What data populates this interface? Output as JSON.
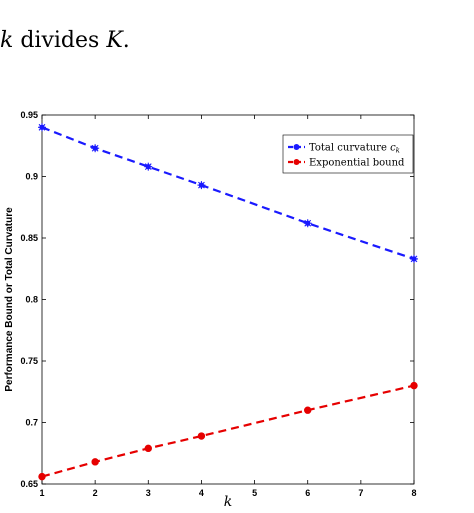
{
  "caption": {
    "var_k": "k",
    "middle": " divides ",
    "var_K": "K",
    "end": "."
  },
  "colors": {
    "series_0": "#1a1aff",
    "series_1": "#e60000"
  },
  "chart_data": {
    "type": "line",
    "xlabel": "k",
    "ylabel": "Performance Bound or Total Curvature",
    "xlim": [
      1,
      8
    ],
    "ylim": [
      0.65,
      0.95
    ],
    "xticks": [
      "1",
      "2",
      "3",
      "4",
      "5",
      "6",
      "7",
      "8"
    ],
    "yticks": [
      "0.65",
      "0.7",
      "0.75",
      "0.8",
      "0.85",
      "0.9",
      "0.95"
    ],
    "grid": false,
    "legend_position": "top-right",
    "series": [
      {
        "name": "Total curvature",
        "name_math": "c",
        "name_sub": "k",
        "marker": "asterisk",
        "style": "dashed",
        "x": [
          1,
          2,
          3,
          4,
          6,
          8
        ],
        "y": [
          0.94,
          0.923,
          0.908,
          0.893,
          0.862,
          0.833
        ]
      },
      {
        "name": "Exponential bound",
        "marker": "circle",
        "style": "dashed",
        "x": [
          1,
          2,
          3,
          4,
          6,
          8
        ],
        "y": [
          0.656,
          0.668,
          0.679,
          0.689,
          0.71,
          0.73
        ]
      }
    ]
  }
}
